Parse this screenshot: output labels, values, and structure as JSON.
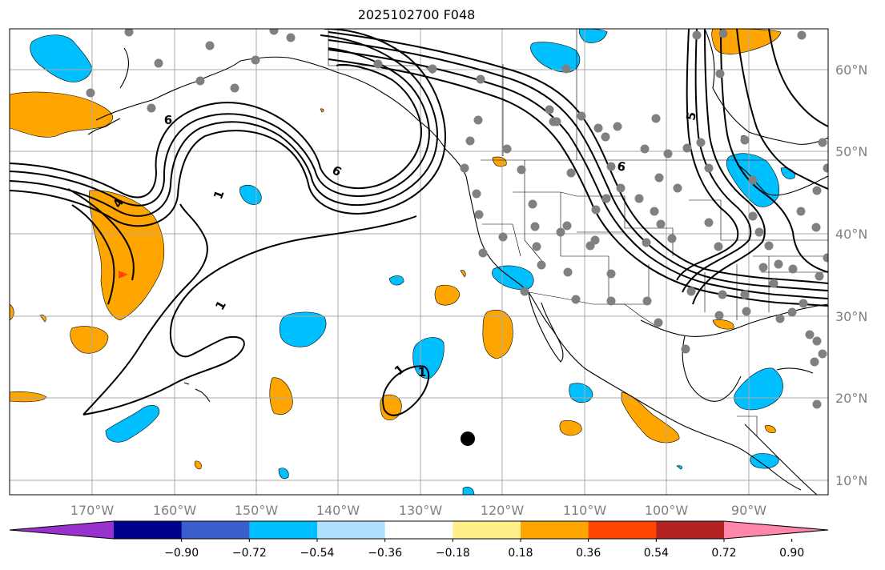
{
  "title": "2025102700 F048",
  "colors": {
    "orange": "#ffa500",
    "blue": "#00bfff",
    "grid": "#a9a9a9",
    "station": "#808080",
    "contour": "#000000",
    "tick_label": "#808080"
  },
  "lon_labels": [
    "170°W",
    "160°W",
    "150°W",
    "140°W",
    "130°W",
    "120°W",
    "110°W",
    "100°W",
    "90°W"
  ],
  "lat_labels": [
    "60°N",
    "50°N",
    "40°N",
    "30°N",
    "20°N",
    "10°N"
  ],
  "contour_labels": [
    "6",
    "1",
    "6",
    "1",
    "1",
    "1",
    "5",
    "6",
    "4"
  ],
  "colorbar": {
    "colors": [
      "#9932cc",
      "#00008b",
      "#3a5fcd",
      "#00bfff",
      "#b0e2ff",
      "#ffffff",
      "#fff08c",
      "#ffa500",
      "#ff4500",
      "#b22222",
      "#ff88aa"
    ],
    "tick_labels": [
      "−0.90",
      "−0.72",
      "−0.54",
      "−0.36",
      "−0.18",
      "0.18",
      "0.36",
      "0.54",
      "0.72",
      "0.90"
    ]
  }
}
